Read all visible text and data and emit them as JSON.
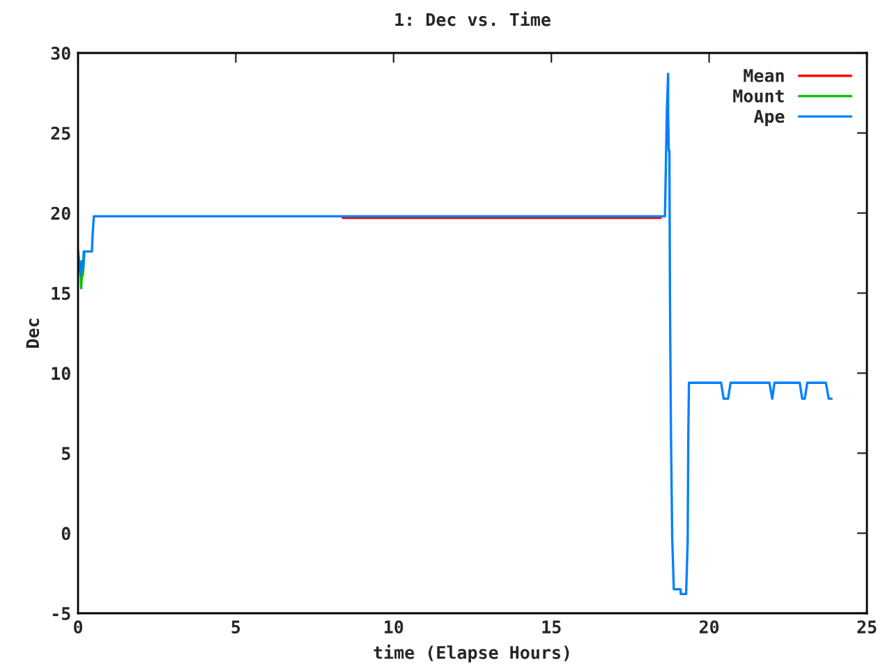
{
  "chart_data": {
    "type": "line",
    "title": "1: Dec vs. Time",
    "xlabel": "time (Elapse Hours)",
    "ylabel": "Dec",
    "xlim": [
      0,
      25
    ],
    "xticks": [
      0,
      5,
      10,
      15,
      20,
      25
    ],
    "ylim": [
      -5,
      30
    ],
    "yticks": [
      -5,
      0,
      5,
      10,
      15,
      20,
      25,
      30
    ],
    "grid": false,
    "legend": "top right",
    "marker": "none",
    "line_style": "solid",
    "series": [
      {
        "name": "Mean",
        "color": "#ff0000",
        "x": [
          8.39,
          18.46
        ],
        "values": [
          19.7,
          19.7
        ]
      },
      {
        "name": "Mount",
        "color": "#00c000",
        "x": [
          0.05,
          0.08,
          0.1,
          0.13,
          0.15,
          0.18,
          0.2
        ],
        "values": [
          17.0,
          16.3,
          15.3,
          16.5,
          16.1,
          16.9,
          17.5
        ]
      },
      {
        "name": "Ape",
        "color": "#0080ff",
        "x": [
          0.0,
          0.05,
          0.08,
          0.12,
          0.16,
          0.18,
          0.44,
          0.46,
          0.5,
          18.6,
          18.62,
          18.66,
          18.7,
          18.7,
          18.72,
          18.74,
          18.76,
          18.79,
          18.83,
          18.88,
          19.1,
          19.1,
          19.27,
          19.32,
          19.34,
          19.36,
          20.38,
          20.46,
          20.6,
          20.68,
          21.91,
          22.0,
          22.07,
          22.87,
          22.95,
          23.03,
          23.11,
          23.7,
          23.79,
          23.88
        ],
        "values": [
          17.7,
          16.6,
          16.1,
          17.0,
          16.5,
          17.6,
          17.6,
          18.6,
          19.8,
          19.8,
          22.0,
          26.4,
          28.7,
          26.4,
          23.9,
          23.9,
          14.3,
          6.2,
          -0.3,
          -3.5,
          -3.5,
          -3.8,
          -3.8,
          -0.5,
          6.2,
          9.4,
          9.4,
          8.4,
          8.4,
          9.4,
          9.4,
          8.4,
          9.4,
          9.4,
          8.4,
          8.4,
          9.4,
          9.4,
          8.4,
          8.4
        ]
      }
    ]
  }
}
